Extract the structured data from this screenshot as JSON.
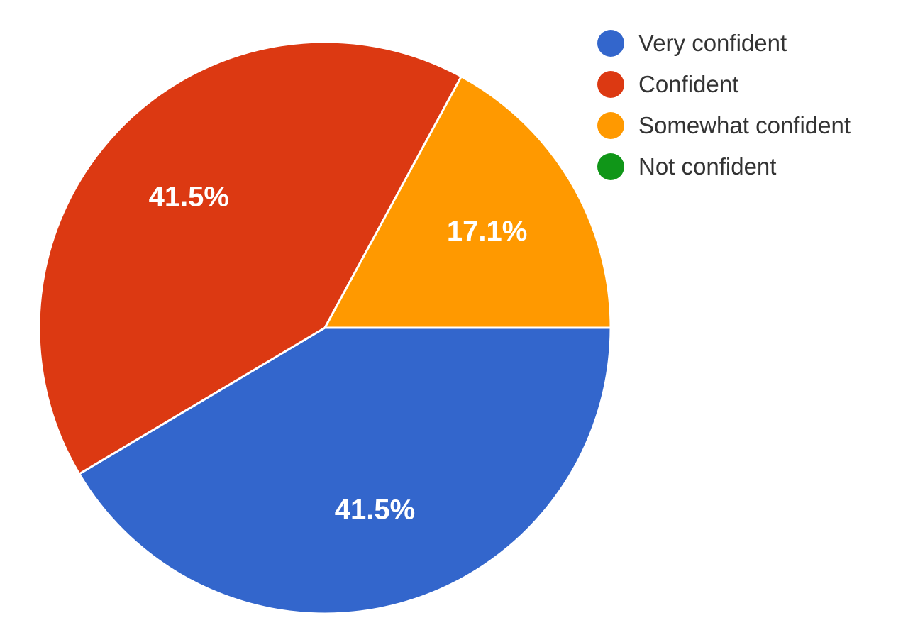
{
  "chart_data": {
    "type": "pie",
    "title": "",
    "legend_position": "top-right",
    "slices": [
      {
        "name": "Very confident",
        "value": 41.5,
        "label": "41.5%",
        "color": "#3366cc"
      },
      {
        "name": "Confident",
        "value": 41.5,
        "label": "41.5%",
        "color": "#dc3912"
      },
      {
        "name": "Somewhat confident",
        "value": 17.1,
        "label": "17.1%",
        "color": "#ff9900"
      },
      {
        "name": "Not confident",
        "value": 0,
        "label": "",
        "color": "#109618"
      }
    ]
  }
}
